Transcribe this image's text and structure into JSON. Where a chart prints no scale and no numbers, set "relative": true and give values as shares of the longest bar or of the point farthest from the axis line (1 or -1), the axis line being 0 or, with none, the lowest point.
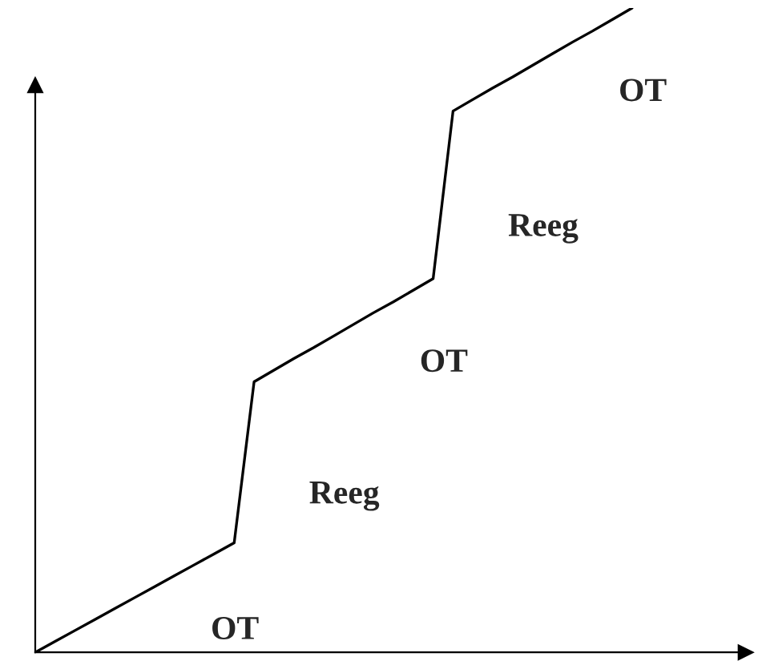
{
  "chart_data": {
    "type": "line",
    "relative": true,
    "categories": [
      null,
      null,
      null,
      null,
      null,
      null,
      null,
      null,
      null,
      null,
      null,
      null,
      null,
      null,
      null,
      null,
      null,
      null,
      null,
      null,
      null,
      null,
      null,
      null,
      null,
      null,
      null,
      null,
      null,
      null,
      null
    ],
    "series": [
      {
        "color": "#000000",
        "values": [
          0,
          0.017,
          0.034,
          0.051,
          0.068,
          0.085,
          0.102,
          0.119,
          0.136,
          0.153,
          0.17,
          0.42,
          0.438,
          0.456,
          0.473,
          0.491,
          0.509,
          0.527,
          0.544,
          0.562,
          0.58,
          0.84,
          0.858,
          0.876,
          0.893,
          0.911,
          0.929,
          0.947,
          0.964,
          0.982,
          1.0
        ]
      }
    ],
    "annotations": [
      "OT",
      "Reeg",
      "OT",
      "Reeg",
      "OT"
    ],
    "marker": "none",
    "line_style": "solid"
  }
}
